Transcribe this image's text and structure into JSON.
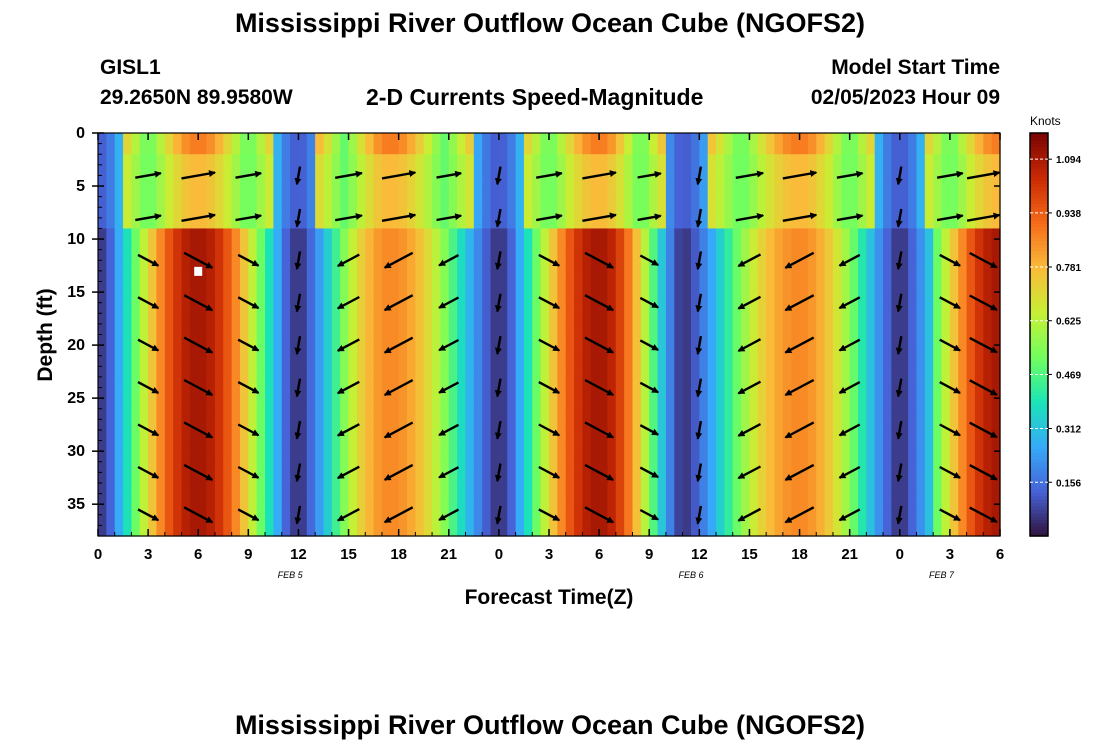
{
  "page": {
    "title": "Mississippi River Outflow Ocean Cube (NGOFS2)",
    "bottom_title": "Mississippi River Outflow Ocean Cube (NGOFS2)",
    "station_id": "GISL1",
    "station_coords": "29.2650N  89.9580W",
    "plot_subtitle": "2-D Currents Speed-Magnitude",
    "model_start_label": "Model Start Time",
    "model_start_value": "02/05/2023 Hour 09"
  },
  "colors": {
    "scale": [
      "#30123b",
      "#4662d7",
      "#36aaf9",
      "#1ae4b6",
      "#72fe5e",
      "#c8ef34",
      "#faba39",
      "#f66b19",
      "#ca2a04",
      "#7a0403"
    ],
    "arrow": "#000000",
    "marker": "#ffffff"
  },
  "chart_data": {
    "type": "heatmap",
    "title": "2-D Currents Speed-Magnitude",
    "xlabel": "Forecast Time(Z)",
    "ylabel": "Depth (ft)",
    "x_tick_labels": [
      "0",
      "3",
      "6",
      "9",
      "12",
      "15",
      "18",
      "21",
      "0",
      "3",
      "6",
      "9",
      "12",
      "15",
      "18",
      "21",
      "0",
      "3",
      "6"
    ],
    "x_range_hours": [
      0,
      54
    ],
    "date_labels": [
      {
        "label": "FEB 5",
        "hour": 11.5
      },
      {
        "label": "FEB 6",
        "hour": 35.5
      },
      {
        "label": "FEB 7",
        "hour": 50.5
      }
    ],
    "y_ticks": [
      0,
      5,
      10,
      15,
      20,
      25,
      30,
      35
    ],
    "y_range_ft": [
      0,
      38
    ],
    "y_inverted": true,
    "colorbar": {
      "label": "Knots",
      "ticks": [
        0.156,
        0.312,
        0.469,
        0.625,
        0.781,
        0.938,
        1.094
      ],
      "range": [
        0,
        1.17
      ]
    },
    "speed_peaks_hours": [
      6,
      17.5,
      30,
      42,
      54
    ],
    "speed_minima_hours": [
      0,
      12,
      24,
      35,
      48
    ],
    "upper_layer_ft": 9,
    "arrow_depths_ft": [
      4,
      8,
      12,
      16,
      20,
      24,
      28,
      32,
      36
    ],
    "arrow_hours": [
      3,
      6,
      9,
      12,
      15,
      18,
      21,
      24,
      27,
      30,
      33,
      36,
      39,
      42,
      45,
      48,
      51,
      53
    ],
    "marker": {
      "hour": 6,
      "depth_ft": 13
    }
  }
}
